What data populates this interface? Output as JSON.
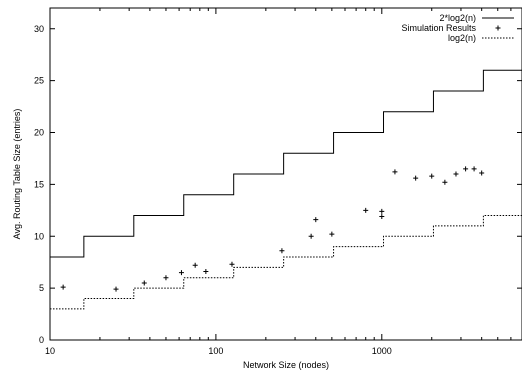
{
  "chart_data": {
    "type": "line",
    "title": "",
    "xlabel": "Network Size (nodes)",
    "ylabel": "Avg. Routing Table Size (entries)",
    "xscale": "log",
    "xlim": [
      10,
      7000
    ],
    "ylim": [
      0,
      32
    ],
    "x_ticks": [
      10,
      100,
      1000
    ],
    "x_tick_labels": [
      "10",
      "100",
      "1000"
    ],
    "y_ticks": [
      0,
      5,
      10,
      15,
      20,
      25,
      30
    ],
    "y_tick_labels": [
      "0",
      "5",
      "10",
      "15",
      "20",
      "25",
      "30"
    ],
    "grid": false,
    "legend_position": "top-right",
    "series": [
      {
        "name": "2*log2(n)",
        "style": "solid",
        "color": "#000000",
        "step_x": [
          10,
          16,
          32,
          64,
          128,
          256,
          512,
          1024,
          2048,
          4096,
          7000
        ],
        "step_y": [
          8,
          10,
          12,
          14,
          16,
          18,
          20,
          22,
          24,
          26
        ]
      },
      {
        "name": "Simulation Results",
        "style": "points",
        "marker": "plus",
        "color": "#000000",
        "x": [
          12,
          25,
          37,
          50,
          62,
          75,
          87,
          125,
          250,
          375,
          400,
          500,
          800,
          1000,
          1000,
          1200,
          1600,
          2000,
          2400,
          2800,
          3200,
          3600,
          4000
        ],
        "y": [
          5.1,
          4.9,
          5.5,
          6.0,
          6.5,
          7.2,
          6.6,
          7.3,
          8.6,
          10.0,
          11.6,
          10.2,
          12.5,
          12.4,
          11.9,
          16.2,
          15.6,
          15.8,
          15.2,
          16.0,
          16.5,
          16.5,
          16.1
        ]
      },
      {
        "name": "log2(n)",
        "style": "dotted",
        "color": "#000000",
        "step_x": [
          10,
          16,
          32,
          64,
          128,
          256,
          512,
          1024,
          2048,
          4096,
          7000
        ],
        "step_y": [
          3,
          4,
          5,
          6,
          7,
          8,
          9,
          10,
          11,
          12
        ]
      }
    ]
  }
}
